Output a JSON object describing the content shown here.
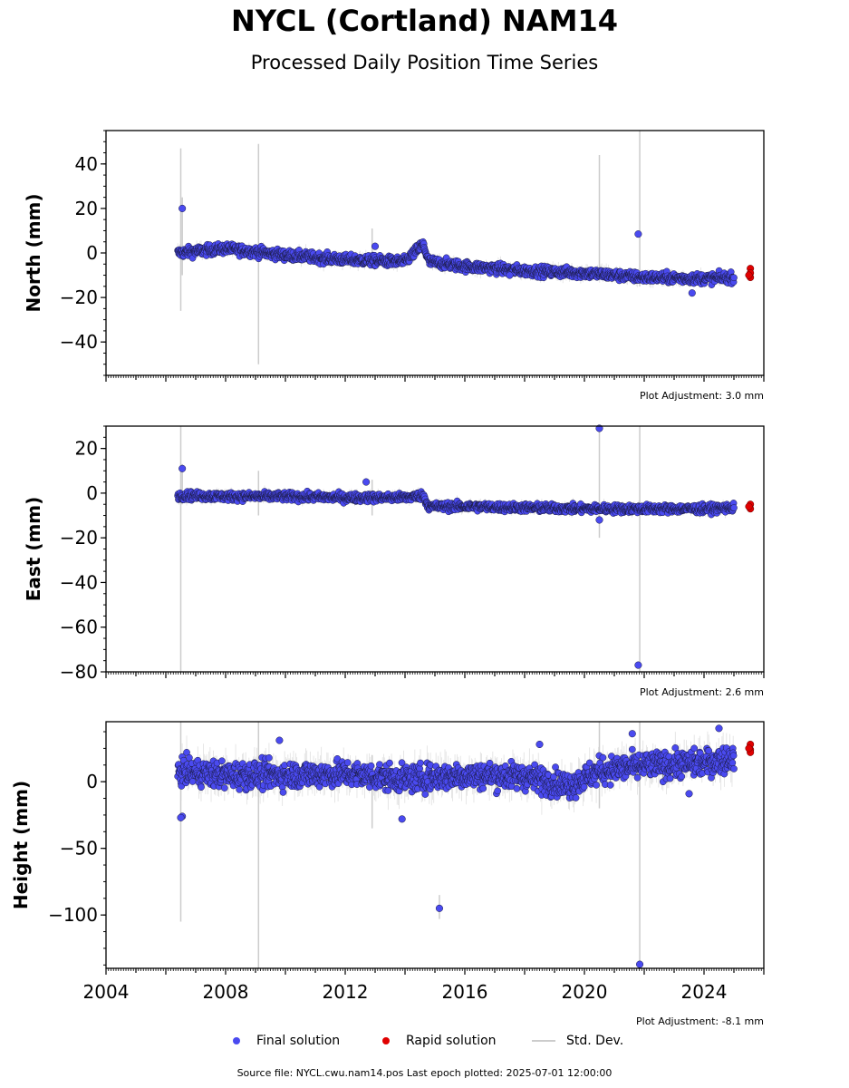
{
  "title": "NYCL (Cortland) NAM14",
  "subtitle": "Processed Daily Position Time Series",
  "footer": "Source file: NYCL.cwu.nam14.pos  Last epoch plotted: 2025-07-01 12:00:00",
  "legend": {
    "final": "Final solution",
    "rapid": "Rapid solution",
    "std": "Std. Dev."
  },
  "colors": {
    "final": "#4a4af0",
    "final_edge": "#1a1a40",
    "rapid": "#e00000",
    "std": "#cccccc",
    "noise": "#555555"
  },
  "chart_data": [
    {
      "type": "scatter",
      "ylabel": "North (mm)",
      "adjustment": "Plot Adjustment: 3.0 mm",
      "xlim": [
        2004,
        2026
      ],
      "ylim": [
        -55,
        55
      ],
      "yticks": [
        40,
        20,
        0,
        -20,
        -40
      ],
      "ytick_labels": [
        "40",
        "20",
        "0",
        "−20",
        "−40"
      ],
      "trend": [
        [
          2006.4,
          0
        ],
        [
          2008,
          2
        ],
        [
          2010,
          -1
        ],
        [
          2012,
          -3
        ],
        [
          2014,
          -4
        ],
        [
          2014.6,
          4
        ],
        [
          2014.8,
          -4
        ],
        [
          2016,
          -6
        ],
        [
          2018,
          -8
        ],
        [
          2020,
          -9
        ],
        [
          2022,
          -11
        ],
        [
          2024,
          -11.5
        ],
        [
          2025,
          -11
        ]
      ],
      "noise_sd": 1.6,
      "outliers": [
        [
          2006.55,
          20
        ],
        [
          2021.8,
          8.5
        ],
        [
          2023.6,
          -18
        ],
        [
          2017.5,
          -10
        ],
        [
          2013.0,
          3
        ]
      ],
      "rapid": [
        [
          2025.55,
          -7
        ],
        [
          2025.55,
          -9
        ],
        [
          2025.55,
          -11
        ],
        [
          2025.5,
          -10
        ]
      ],
      "errbars": [
        [
          2006.5,
          -26,
          47
        ],
        [
          2006.55,
          -10,
          25
        ],
        [
          2009.1,
          -50,
          49
        ],
        [
          2020.5,
          -10,
          44
        ],
        [
          2021.85,
          -15,
          55
        ],
        [
          2012.9,
          -5,
          11
        ]
      ]
    },
    {
      "type": "scatter",
      "ylabel": "East (mm)",
      "adjustment": "Plot Adjustment: 2.6 mm",
      "xlim": [
        2004,
        2026
      ],
      "ylim": [
        -80,
        30
      ],
      "yticks": [
        20,
        0,
        -20,
        -40,
        -60,
        -80
      ],
      "ytick_labels": [
        "20",
        "0",
        "−20",
        "−40",
        "−60",
        "−80"
      ],
      "trend": [
        [
          2006.4,
          -1
        ],
        [
          2008,
          -1.5
        ],
        [
          2010,
          -1.5
        ],
        [
          2012,
          -2
        ],
        [
          2014,
          -2
        ],
        [
          2014.6,
          -1
        ],
        [
          2014.8,
          -6
        ],
        [
          2016,
          -6
        ],
        [
          2018,
          -6.5
        ],
        [
          2020,
          -7
        ],
        [
          2022,
          -7
        ],
        [
          2024,
          -7
        ],
        [
          2025,
          -6.5
        ]
      ],
      "noise_sd": 1.3,
      "outliers": [
        [
          2006.55,
          11
        ],
        [
          2020.5,
          29
        ],
        [
          2021.8,
          -77
        ],
        [
          2020.5,
          -12
        ],
        [
          2012.7,
          5
        ]
      ],
      "rapid": [
        [
          2025.55,
          -5
        ],
        [
          2025.55,
          -7
        ],
        [
          2025.5,
          -6
        ]
      ],
      "errbars": [
        [
          2006.5,
          -80,
          30
        ],
        [
          2006.55,
          -5,
          13
        ],
        [
          2009.1,
          -10,
          10
        ],
        [
          2012.9,
          -10,
          6
        ],
        [
          2020.5,
          -20,
          30
        ],
        [
          2021.85,
          -80,
          30
        ]
      ]
    },
    {
      "type": "scatter",
      "ylabel": "Height (mm)",
      "adjustment": "Plot Adjustment: -8.1 mm",
      "xlim": [
        2004,
        2026
      ],
      "ylim": [
        -140,
        45
      ],
      "yticks": [
        0,
        -50,
        -100
      ],
      "ytick_labels": [
        "0",
        "−50",
        "−100"
      ],
      "xticks": [
        2004,
        2008,
        2012,
        2016,
        2020,
        2024
      ],
      "xtick_labels": [
        "2004",
        "2008",
        "2012",
        "2016",
        "2020",
        "2024"
      ],
      "trend": [
        [
          2006.4,
          8
        ],
        [
          2008,
          5
        ],
        [
          2010,
          5
        ],
        [
          2012,
          6
        ],
        [
          2014,
          2
        ],
        [
          2016,
          5
        ],
        [
          2018,
          4
        ],
        [
          2019.5,
          -3
        ],
        [
          2020.5,
          8
        ],
        [
          2022,
          12
        ],
        [
          2024,
          14
        ],
        [
          2025,
          18
        ]
      ],
      "noise_sd": 7,
      "outliers": [
        [
          2006.55,
          -26
        ],
        [
          2006.5,
          -27
        ],
        [
          2015.15,
          -95
        ],
        [
          2021.85,
          -137
        ],
        [
          2013.9,
          -28
        ],
        [
          2021.6,
          36
        ],
        [
          2024.5,
          40
        ],
        [
          2018.5,
          28
        ],
        [
          2009.8,
          31
        ],
        [
          2023.5,
          -9
        ]
      ],
      "rapid": [
        [
          2025.55,
          28
        ],
        [
          2025.55,
          24
        ],
        [
          2025.55,
          22
        ],
        [
          2025.5,
          25
        ]
      ],
      "errbars": [
        [
          2006.5,
          -105,
          45
        ],
        [
          2009.1,
          -140,
          45
        ],
        [
          2015.15,
          -103,
          -85
        ],
        [
          2020.5,
          -20,
          45
        ],
        [
          2021.85,
          -140,
          45
        ],
        [
          2012.9,
          -35,
          20
        ]
      ]
    }
  ]
}
